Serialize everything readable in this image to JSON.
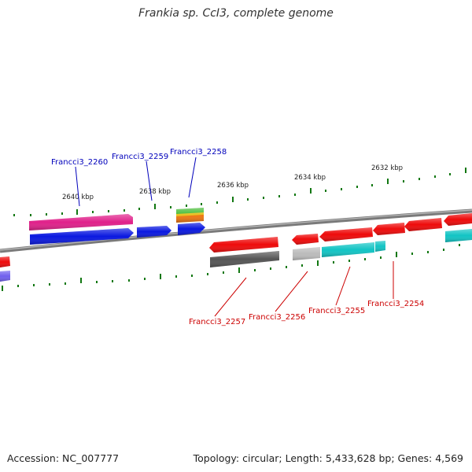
{
  "title": "Frankia sp. CcI3, complete genome",
  "footer": {
    "accession": "Accession: NC_007777",
    "summary": "Topology: circular; Length: 5,433,628 bp; Genes: 4,569"
  },
  "scale_ticks": [
    "2640 kbp",
    "2638 kbp",
    "2636 kbp",
    "2634 kbp",
    "2632 kbp"
  ],
  "top_labels": [
    "Francci3_2260",
    "Francci3_2259",
    "Francci3_2258"
  ],
  "bottom_labels": [
    "Francci3_2257",
    "Francci3_2256",
    "Francci3_2255",
    "Francci3_2254"
  ],
  "colors": {
    "top_label": "#0000bb",
    "bottom_label": "#cc0000",
    "backbone": "#888888",
    "tick": "#117711"
  }
}
